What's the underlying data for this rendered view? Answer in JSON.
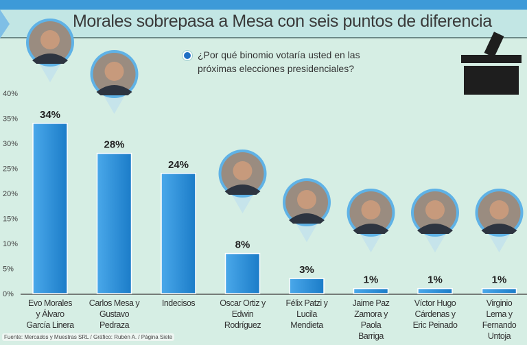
{
  "title": "Morales sobrepasa a Mesa con seis puntos de diferencia",
  "question": "¿Por qué binomio votaría usted en las próximas elecciones presidenciales?",
  "source": "Fuente: Mercados y Muestras SRL / Gráfico: Rubén A. / Página Siete",
  "colors": {
    "bar": "#2b8fd9",
    "background": "#d6eee4",
    "topbar": "#3d9ad8"
  },
  "icons": [
    "ballot-box-icon",
    "candidate-portrait"
  ],
  "chart_data": {
    "type": "bar",
    "title": "Morales sobrepasa a Mesa con seis puntos de diferencia",
    "categories": [
      "Evo Morales y Álvaro García Linera",
      "Carlos Mesa y Gustavo Pedraza",
      "Indecisos",
      "Oscar Ortiz y Edwin Rodríguez",
      "Félix Patzi y Lucila Mendieta",
      "Jaime Paz Zamora y Paola Barriga",
      "Víctor Hugo Cárdenas y Eric Peinado",
      "Virginio Lema y Fernando Untoja"
    ],
    "category_lines": [
      [
        "Evo Morales",
        "y Álvaro",
        "García Linera"
      ],
      [
        "Carlos Mesa y",
        "Gustavo",
        "Pedraza"
      ],
      [
        "Indecisos"
      ],
      [
        "Oscar Ortiz y",
        "Edwin",
        "Rodríguez"
      ],
      [
        "Félix Patzi y",
        "Lucila",
        "Mendieta"
      ],
      [
        "Jaime Paz",
        "Zamora y",
        "Paola",
        "Barriga"
      ],
      [
        "Víctor Hugo",
        "Cárdenas y",
        "Eric Peinado"
      ],
      [
        "Virginio",
        "Lema y",
        "Fernando",
        "Untoja"
      ]
    ],
    "values": [
      34,
      28,
      24,
      8,
      3,
      1,
      1,
      1
    ],
    "data_labels": [
      "34%",
      "28%",
      "24%",
      "8%",
      "3%",
      "1%",
      "1%",
      "1%"
    ],
    "portraits": [
      true,
      true,
      false,
      true,
      true,
      true,
      true,
      true
    ],
    "yticks": [
      "0%",
      "5%",
      "10%",
      "15%",
      "20%",
      "25%",
      "30%",
      "35%",
      "40%"
    ],
    "ylim": [
      0,
      40
    ],
    "xlabel": "",
    "ylabel": "",
    "grid": false
  }
}
